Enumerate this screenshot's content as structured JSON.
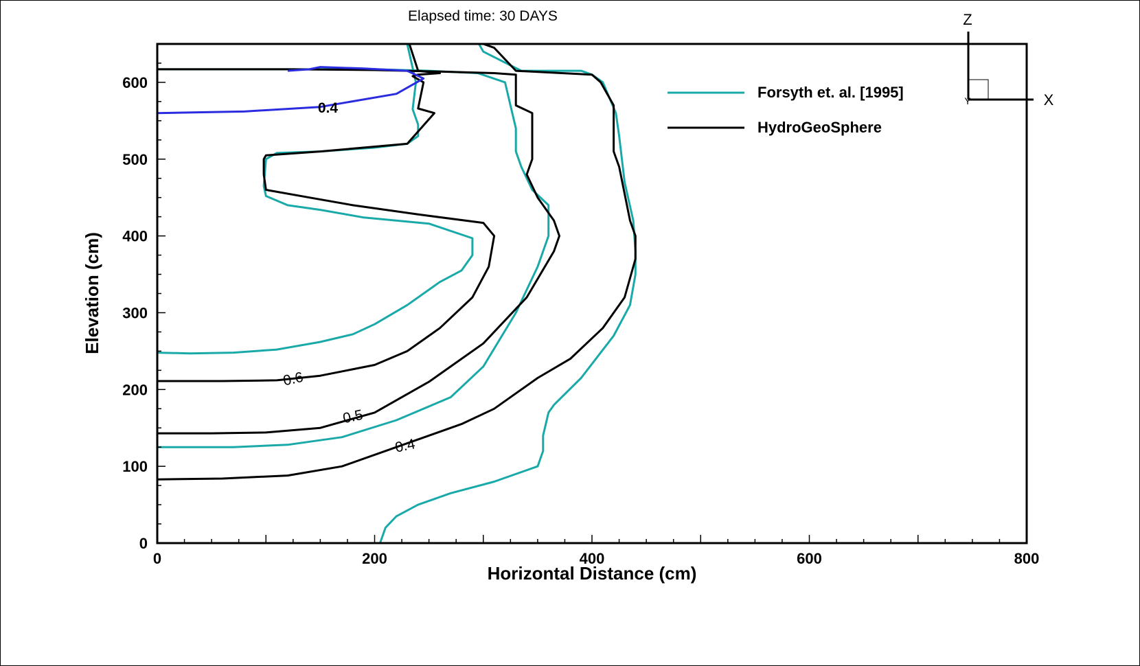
{
  "chart_data": {
    "type": "line",
    "title": "",
    "subtitle": "Elapsed time: 30 DAYS",
    "xlabel": "Horizontal Distance (cm)",
    "ylabel": "Elevation (cm)",
    "xlim": [
      0,
      800
    ],
    "ylim": [
      0,
      650
    ],
    "xticks": [
      0,
      200,
      400,
      600,
      800
    ],
    "yticks": [
      0,
      100,
      200,
      300,
      400,
      500,
      600
    ],
    "grid": false,
    "legend_position": "top-right",
    "colors": {
      "forsyth": "#1aa9a9",
      "hgs": "#000000",
      "highlight": "#2b2be0"
    },
    "legend": [
      {
        "name": "Forsyth et. al. [1995]",
        "color": "#1aa9a9"
      },
      {
        "name": "HydroGeoSphere",
        "color": "#000000"
      }
    ],
    "series": [
      {
        "name": "Forsyth et. al. [1995]",
        "contour": "0.6",
        "x": [
          0,
          30,
          70,
          110,
          150,
          180,
          200,
          230,
          260,
          280,
          290,
          290,
          250,
          190,
          150,
          120,
          100,
          98,
          100,
          110,
          150,
          200,
          230,
          240,
          240,
          235,
          238,
          230
        ],
        "y": [
          248,
          247,
          248,
          252,
          262,
          272,
          285,
          310,
          340,
          355,
          375,
          397,
          416,
          424,
          434,
          440,
          452,
          465,
          500,
          508,
          510,
          515,
          520,
          530,
          545,
          565,
          600,
          650
        ]
      },
      {
        "name": "Forsyth et. al. [1995]",
        "contour": "0.5",
        "x": [
          0,
          30,
          70,
          120,
          170,
          220,
          270,
          300,
          330,
          350,
          360,
          360,
          345,
          335,
          330,
          330,
          325,
          320,
          295,
          250,
          200,
          140,
          70,
          0
        ],
        "y": [
          125,
          125,
          125,
          128,
          138,
          160,
          190,
          230,
          300,
          360,
          400,
          440,
          460,
          490,
          510,
          540,
          570,
          600,
          612,
          615,
          617,
          617,
          617,
          617
        ]
      },
      {
        "name": "Forsyth et. al. [1995]",
        "contour": "0.4",
        "x": [
          205,
          210,
          220,
          240,
          270,
          310,
          350,
          355,
          355,
          360,
          365,
          390,
          420,
          435,
          440,
          440,
          438,
          430,
          425,
          422,
          410,
          400,
          390,
          370,
          335,
          300,
          296
        ],
        "y": [
          0,
          20,
          35,
          50,
          65,
          80,
          100,
          120,
          140,
          170,
          180,
          215,
          270,
          310,
          350,
          380,
          420,
          470,
          530,
          560,
          600,
          610,
          615,
          615,
          615,
          640,
          650
        ]
      },
      {
        "name": "HydroGeoSphere",
        "contour": "0.6",
        "x": [
          0,
          60,
          110,
          150,
          200,
          230,
          260,
          290,
          305,
          310,
          300,
          240,
          180,
          140,
          100,
          98,
          98,
          100,
          150,
          230,
          255,
          240,
          245,
          235,
          240,
          260,
          240,
          232
        ],
        "y": [
          211,
          211,
          212,
          218,
          232,
          250,
          280,
          320,
          360,
          400,
          417,
          428,
          440,
          450,
          460,
          480,
          500,
          505,
          510,
          520,
          560,
          566,
          600,
          608,
          610,
          612,
          615,
          650
        ]
      },
      {
        "name": "HydroGeoSphere",
        "contour": "0.5",
        "x": [
          0,
          50,
          100,
          150,
          200,
          250,
          300,
          340,
          365,
          370,
          365,
          350,
          340,
          345,
          345,
          330,
          330,
          310,
          260,
          200,
          120,
          0
        ],
        "y": [
          143,
          143,
          144,
          150,
          170,
          210,
          260,
          320,
          380,
          400,
          420,
          450,
          480,
          500,
          560,
          570,
          610,
          612,
          614,
          616,
          617,
          617
        ]
      },
      {
        "name": "HydroGeoSphere",
        "contour": "0.4",
        "x": [
          0,
          60,
          120,
          170,
          220,
          250,
          280,
          310,
          350,
          380,
          410,
          430,
          440,
          440,
          435,
          425,
          420,
          420,
          408,
          400,
          330,
          320,
          310,
          300
        ],
        "y": [
          83,
          84,
          88,
          100,
          125,
          140,
          155,
          175,
          215,
          240,
          280,
          320,
          370,
          400,
          420,
          490,
          510,
          570,
          600,
          610,
          615,
          630,
          645,
          650
        ]
      },
      {
        "name": "",
        "contour": "0.4",
        "x": [
          0,
          80,
          150,
          220,
          245,
          230,
          190,
          150,
          140,
          120
        ],
        "y": [
          560,
          562,
          568,
          585,
          605,
          615,
          618,
          620,
          617,
          615
        ]
      }
    ],
    "contour_labels": [
      {
        "text": "0.4",
        "x": 157,
        "y": 567
      },
      {
        "text": "0.6",
        "x": 125,
        "y": 214
      },
      {
        "text": "0.5",
        "x": 180,
        "y": 165
      },
      {
        "text": "0.4",
        "x": 228,
        "y": 127
      }
    ],
    "axis_triad": {
      "z_label": "Z",
      "x_label": "X",
      "y_label": "Y"
    }
  }
}
